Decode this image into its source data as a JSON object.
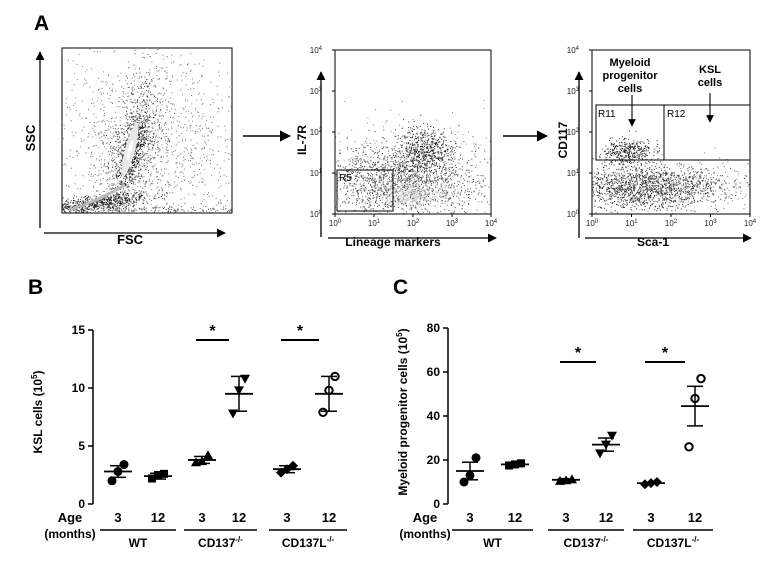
{
  "panels": {
    "a": {
      "letter": "A",
      "plot1": {
        "ylabel": "SSC",
        "xlabel": "FSC"
      },
      "plot2": {
        "ylabel": "IL-7R",
        "xlabel": "Lineage markers",
        "gate": "R5",
        "xticks": [
          "10",
          "10",
          "10",
          "10",
          "10"
        ],
        "xexp": [
          "0",
          "1",
          "2",
          "3",
          "4"
        ],
        "yticks": [
          "10",
          "10",
          "10",
          "10",
          "10"
        ],
        "yexp": [
          "0",
          "1",
          "2",
          "3",
          "4"
        ]
      },
      "plot3": {
        "ylabel": "CD117",
        "xlabel": "Sca-1",
        "gate1": "R11",
        "gate2": "R12",
        "ann1_l1": "Myeloid",
        "ann1_l2": "progenitor",
        "ann1_l3": "cells",
        "ann2_l1": "KSL",
        "ann2_l2": "cells",
        "xticks": [
          "10",
          "10",
          "10",
          "10",
          "10"
        ],
        "xexp": [
          "0",
          "1",
          "2",
          "3",
          "4"
        ],
        "yticks": [
          "10",
          "10",
          "10",
          "10",
          "10"
        ],
        "yexp": [
          "0",
          "1",
          "2",
          "3",
          "4"
        ]
      }
    },
    "b": {
      "letter": "B"
    },
    "c": {
      "letter": "C"
    }
  },
  "footer": {
    "age_label": "Age",
    "months_label": "(months)",
    "ages": [
      "3",
      "12",
      "3",
      "12",
      "3",
      "12"
    ],
    "groups": [
      "WT",
      "CD137",
      "CD137L"
    ],
    "group_sup": [
      "",
      "-/-",
      "-/-"
    ]
  },
  "chart_data": [
    {
      "type": "scatter",
      "title": "",
      "ylabel": "KSL cells (10^5)",
      "ylabel_main": "KSL cells  (10",
      "ylabel_exp": "5",
      "ylabel_end": ")",
      "ylim": [
        0,
        15
      ],
      "yticks": [
        0,
        5,
        10,
        15
      ],
      "categories": [
        "WT 3",
        "WT 12",
        "CD137-/- 3",
        "CD137-/- 12",
        "CD137L-/- 3",
        "CD137L-/- 12"
      ],
      "markers": [
        "circle",
        "square",
        "triangle-up",
        "triangle-down",
        "diamond",
        "circle-open"
      ],
      "points": [
        [
          2.0,
          2.8,
          3.4
        ],
        [
          2.2,
          2.5,
          2.6
        ],
        [
          3.6,
          3.7,
          4.2
        ],
        [
          7.8,
          9.8,
          10.8
        ],
        [
          2.7,
          3.0,
          3.3
        ],
        [
          7.9,
          9.8,
          11.0
        ]
      ],
      "means": [
        2.8,
        2.4,
        3.8,
        9.5,
        3.0,
        9.5
      ],
      "errors": [
        0.5,
        0.25,
        0.3,
        1.5,
        0.3,
        1.5
      ],
      "significance": [
        {
          "from": 2,
          "to": 3,
          "label": "*"
        },
        {
          "from": 4,
          "to": 5,
          "label": "*"
        }
      ]
    },
    {
      "type": "scatter",
      "title": "",
      "ylabel": "Myeloid progenitor cells (10^5)",
      "ylabel_main": "Myeloid  progenitor cells  (10",
      "ylabel_exp": "5",
      "ylabel_end": ")",
      "ylim": [
        0,
        80
      ],
      "yticks": [
        0,
        20,
        40,
        60,
        80
      ],
      "categories": [
        "WT 3",
        "WT 12",
        "CD137-/- 3",
        "CD137-/- 12",
        "CD137L-/- 3",
        "CD137L-/- 12"
      ],
      "markers": [
        "circle",
        "square",
        "triangle-up",
        "triangle-down",
        "diamond",
        "circle-open"
      ],
      "points": [
        [
          10,
          13,
          21
        ],
        [
          17.5,
          18,
          18.5
        ],
        [
          10.5,
          10.8,
          11.2
        ],
        [
          23,
          27,
          31
        ],
        [
          9,
          9.5,
          10
        ],
        [
          26,
          48,
          57
        ]
      ],
      "means": [
        15,
        18,
        11,
        27,
        9.5,
        44.5
      ],
      "errors": [
        4,
        1,
        0.5,
        3,
        0.3,
        9
      ],
      "significance": [
        {
          "from": 2,
          "to": 3,
          "label": "*"
        },
        {
          "from": 4,
          "to": 5,
          "label": "*"
        }
      ]
    }
  ]
}
